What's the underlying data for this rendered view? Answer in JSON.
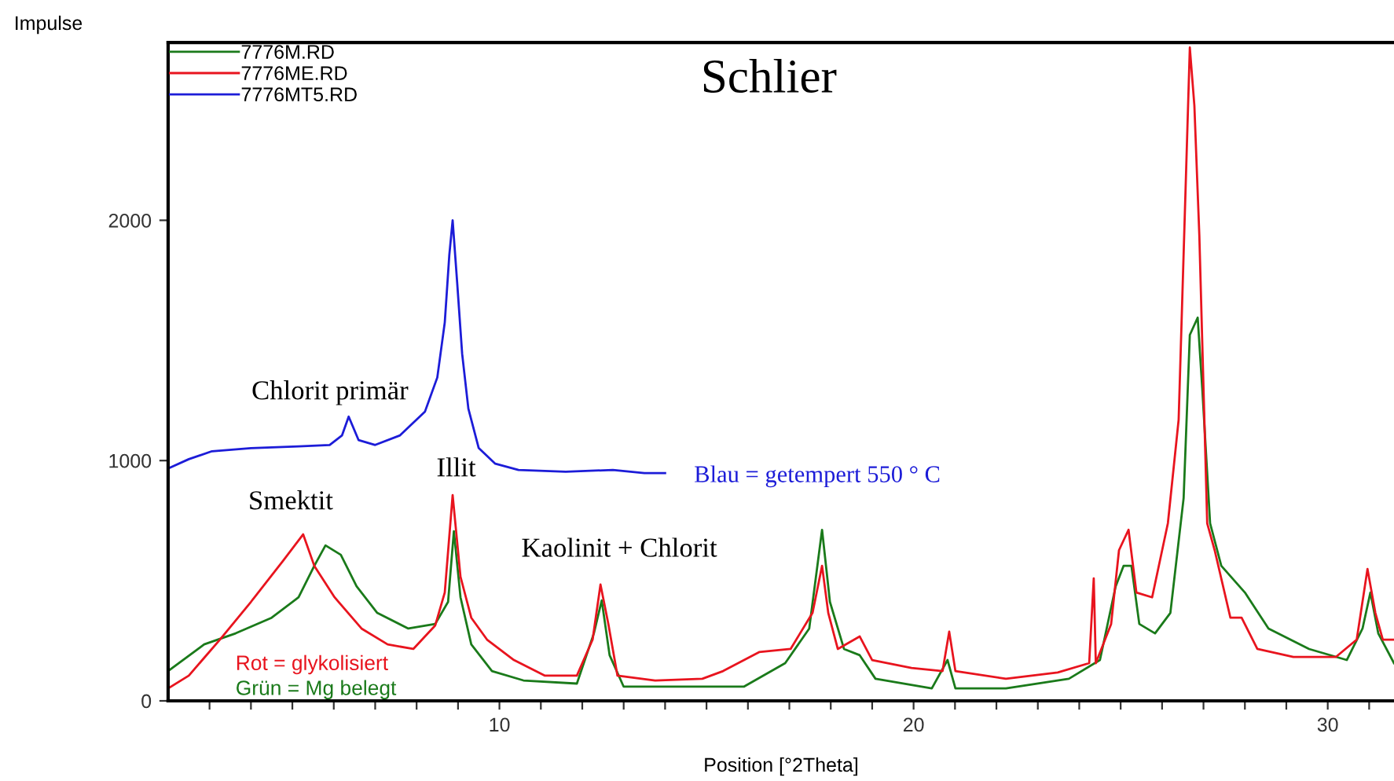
{
  "chart_data": {
    "type": "line",
    "title": "Schlier",
    "xlabel": "Position [°2Theta]",
    "ylabel": "Impulse",
    "xlim": [
      2,
      31.6
    ],
    "ylim": [
      0,
      2740
    ],
    "xticks": [
      {
        "value": 3,
        "label": null
      },
      {
        "value": 4,
        "label": null
      },
      {
        "value": 5,
        "label": null
      },
      {
        "value": 6,
        "label": null
      },
      {
        "value": 7,
        "label": null
      },
      {
        "value": 8,
        "label": null
      },
      {
        "value": 9,
        "label": null
      },
      10,
      {
        "value": 11,
        "label": null
      },
      {
        "value": 12,
        "label": null
      },
      {
        "value": 13,
        "label": null
      },
      {
        "value": 14,
        "label": null
      },
      {
        "value": 15,
        "label": null
      },
      {
        "value": 16,
        "label": null
      },
      {
        "value": 17,
        "label": null
      },
      {
        "value": 18,
        "label": null
      },
      {
        "value": 19,
        "label": null
      },
      20,
      {
        "value": 21,
        "label": null
      },
      {
        "value": 22,
        "label": null
      },
      {
        "value": 23,
        "label": null
      },
      {
        "value": 24,
        "label": null
      },
      {
        "value": 25,
        "label": null
      },
      {
        "value": 26,
        "label": null
      },
      {
        "value": 27,
        "label": null
      },
      {
        "value": 28,
        "label": null
      },
      {
        "value": 29,
        "label": null
      },
      30,
      {
        "value": 31,
        "label": null
      }
    ],
    "yticks": [
      0,
      1000,
      2000
    ],
    "grid": false,
    "legend": "top left",
    "marker": "none",
    "line_style": "solid",
    "series": [
      {
        "name": "7776M.RD",
        "color": "#1a7a1a",
        "x": [
          2.0,
          2.87,
          3.63,
          4.5,
          5.15,
          5.53,
          5.8,
          6.17,
          6.55,
          7.05,
          7.8,
          8.45,
          8.76,
          8.9,
          9.06,
          9.32,
          9.82,
          10.58,
          11.87,
          12.28,
          12.47,
          12.66,
          13.0,
          14.9,
          15.9,
          16.9,
          17.48,
          17.79,
          17.98,
          18.32,
          18.7,
          19.08,
          20.44,
          20.82,
          21.01,
          22.23,
          23.75,
          24.5,
          24.88,
          25.07,
          25.26,
          25.45,
          25.83,
          26.2,
          26.52,
          26.67,
          26.86,
          26.97,
          27.16,
          27.43,
          28.0,
          28.57,
          29.55,
          30.46,
          30.84,
          31.03,
          31.22,
          31.6
        ],
        "values": [
          124,
          235,
          281,
          346,
          431,
          562,
          647,
          608,
          477,
          366,
          301,
          320,
          412,
          706,
          431,
          235,
          124,
          85,
          72,
          281,
          418,
          190,
          59,
          59,
          59,
          157,
          301,
          712,
          412,
          216,
          190,
          92,
          52,
          170,
          52,
          52,
          92,
          170,
          477,
          562,
          562,
          320,
          281,
          366,
          843,
          1523,
          1595,
          1301,
          739,
          562,
          451,
          301,
          216,
          170,
          301,
          451,
          281,
          157
        ]
      },
      {
        "name": "7776ME.RD",
        "color": "#e8141e",
        "x": [
          2.0,
          2.5,
          3.25,
          4.0,
          4.77,
          5.26,
          5.53,
          6.02,
          6.67,
          7.3,
          7.92,
          8.45,
          8.68,
          8.87,
          9.06,
          9.32,
          9.7,
          10.35,
          11.1,
          11.87,
          12.25,
          12.44,
          12.63,
          12.85,
          13.76,
          14.9,
          15.4,
          16.27,
          17.03,
          17.56,
          17.79,
          17.94,
          18.17,
          18.7,
          19.0,
          19.95,
          20.7,
          20.86,
          21.01,
          22.23,
          23.48,
          24.24,
          24.35,
          24.4,
          24.77,
          24.96,
          25.19,
          25.38,
          25.76,
          26.14,
          26.4,
          26.67,
          26.78,
          26.9,
          27.09,
          27.27,
          27.65,
          27.92,
          28.3,
          29.17,
          30.2,
          30.7,
          30.96,
          31.15,
          31.33,
          31.6
        ],
        "values": [
          52,
          105,
          255,
          412,
          582,
          693,
          562,
          431,
          301,
          235,
          216,
          314,
          451,
          856,
          516,
          346,
          255,
          170,
          105,
          105,
          255,
          484,
          320,
          105,
          85,
          92,
          124,
          203,
          216,
          366,
          562,
          366,
          216,
          268,
          170,
          137,
          124,
          288,
          124,
          92,
          118,
          157,
          510,
          157,
          320,
          627,
          712,
          451,
          431,
          739,
          1170,
          2719,
          2477,
          1935,
          739,
          627,
          346,
          346,
          216,
          183,
          183,
          255,
          549,
          366,
          255,
          255
        ]
      },
      {
        "name": "7776MT5.RD",
        "color": "#1c1cd8",
        "x": [
          2.0,
          2.5,
          3.06,
          4.0,
          5.15,
          5.9,
          6.2,
          6.36,
          6.6,
          7.0,
          7.6,
          8.2,
          8.5,
          8.68,
          8.79,
          8.87,
          8.98,
          9.1,
          9.25,
          9.5,
          9.9,
          10.46,
          11.6,
          12.74,
          13.5,
          14.0
        ],
        "values": [
          967,
          1006,
          1039,
          1052,
          1059,
          1065,
          1105,
          1183,
          1085,
          1065,
          1105,
          1203,
          1346,
          1575,
          1856,
          2000,
          1739,
          1444,
          1216,
          1052,
          987,
          961,
          954,
          961,
          948,
          948
        ]
      }
    ],
    "annotations": [
      "Chlorit primär",
      "Illit",
      "Smektit",
      "Kaolinit + Chlorit",
      "Blau = getempert 550 ° C",
      "Rot = glykolisiert",
      "Grün = Mg belegt"
    ]
  }
}
